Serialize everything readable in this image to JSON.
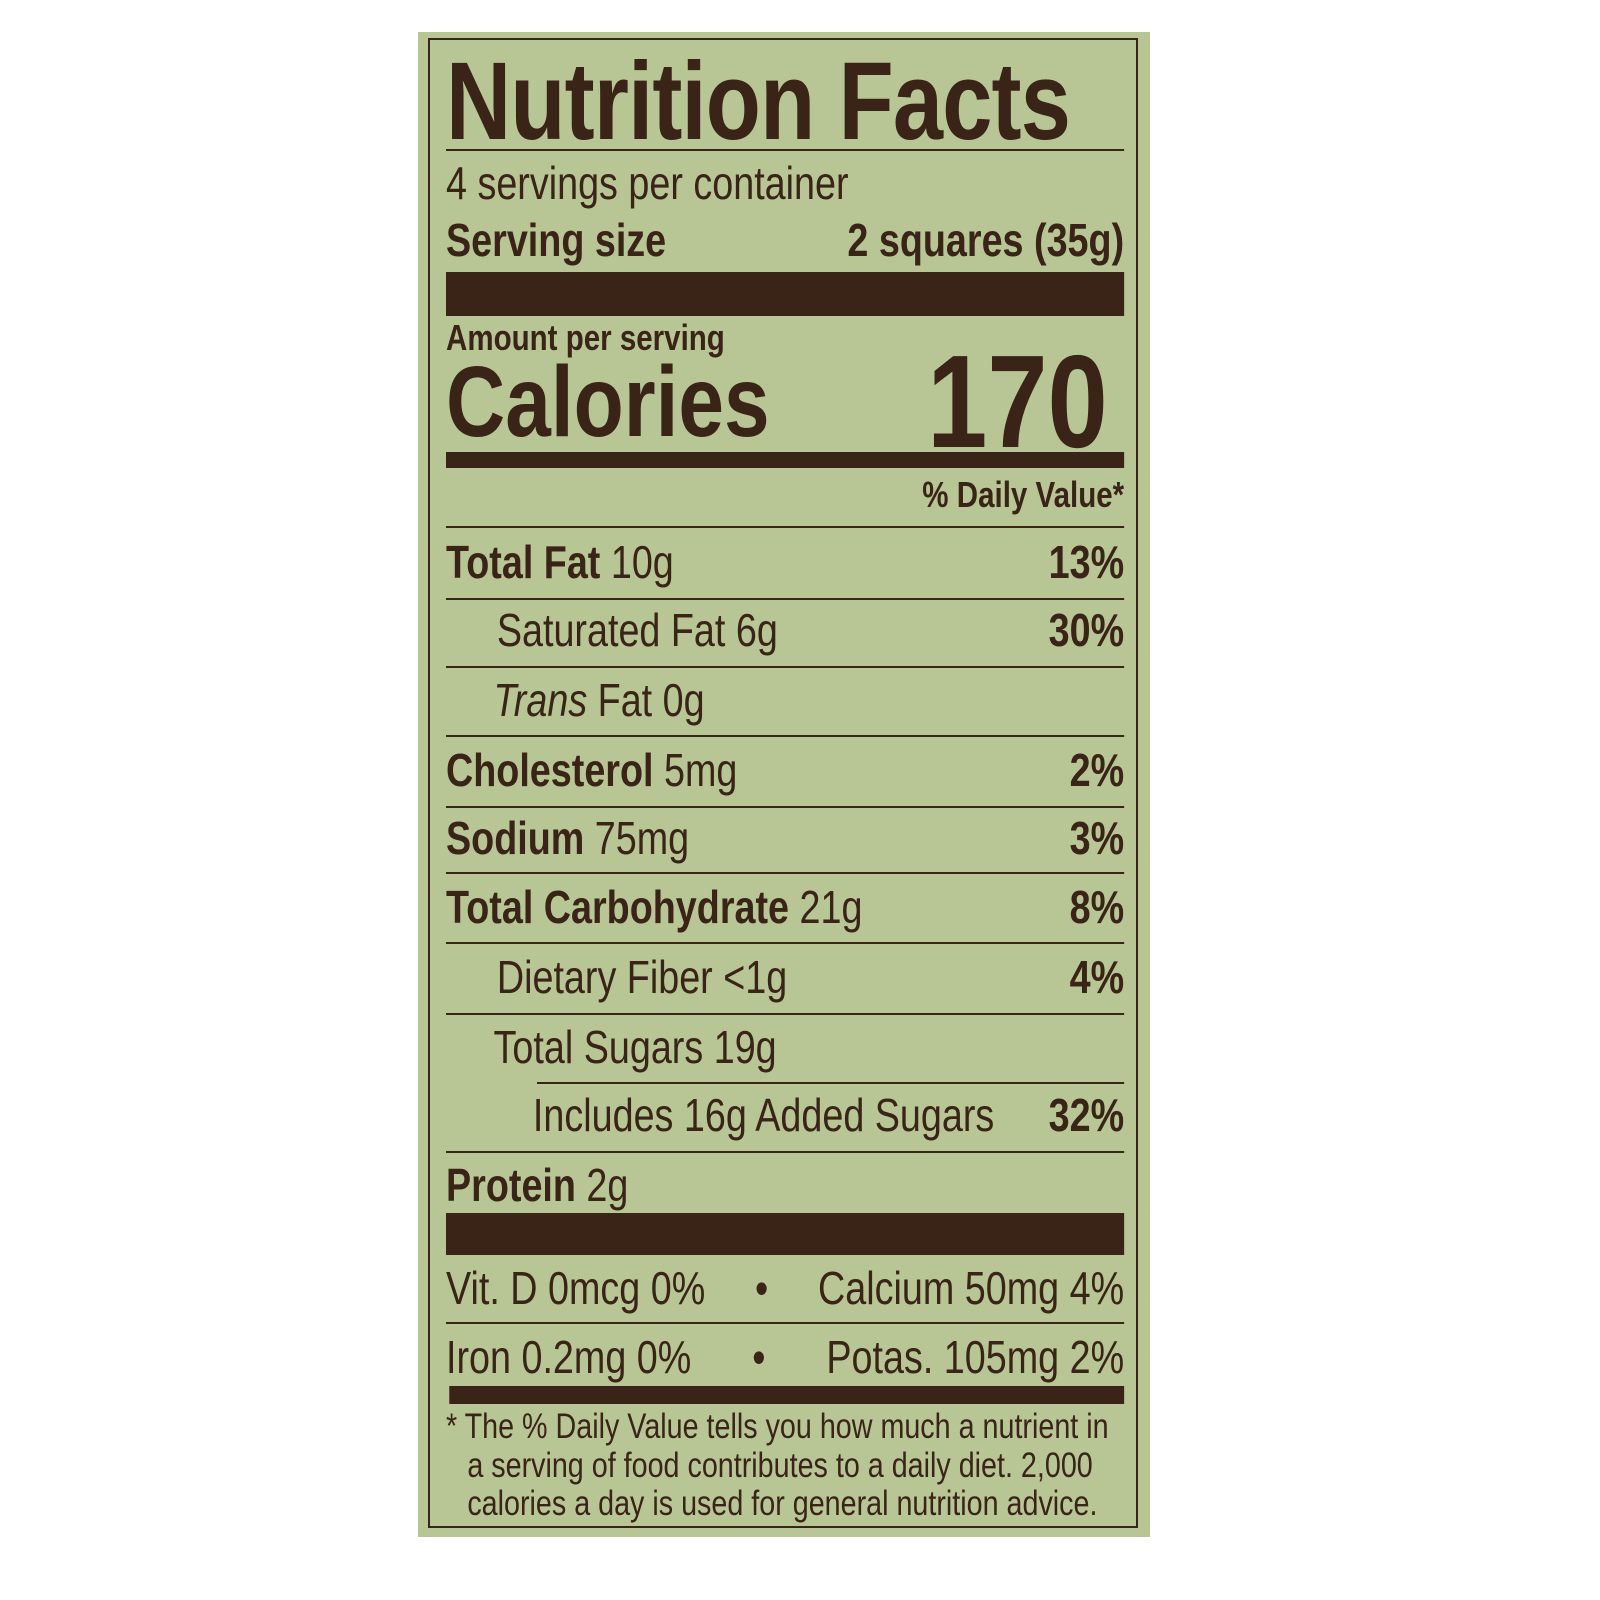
{
  "colors": {
    "background": "#b8c695",
    "ink": "#3a2418"
  },
  "title": "Nutrition Facts",
  "servings_per_container": "4 servings per container",
  "serving_size": {
    "label": "Serving size",
    "value": "2 squares (35g)"
  },
  "amount_per_serving": "Amount per serving",
  "calories": {
    "label": "Calories",
    "value": "170"
  },
  "daily_value_header": "% Daily Value*",
  "nutrients": [
    {
      "name": "Total Fat",
      "amount": "10g",
      "dv": "13%"
    },
    {
      "name": "Saturated Fat",
      "amount": "6g",
      "dv": "30%"
    },
    {
      "name": "Trans",
      "name_rest": "Fat",
      "amount": "0g",
      "dv": ""
    },
    {
      "name": "Cholesterol",
      "amount": "5mg",
      "dv": "2%"
    },
    {
      "name": "Sodium",
      "amount": "75mg",
      "dv": "3%"
    },
    {
      "name": "Total Carbohydrate",
      "amount": "21g",
      "dv": "8%"
    },
    {
      "name": "Dietary Fiber",
      "amount": "<1g",
      "dv": "4%"
    },
    {
      "name": "Total Sugars",
      "amount": "19g",
      "dv": ""
    },
    {
      "name": "Includes 16g Added Sugars",
      "amount": "",
      "dv": "32%"
    },
    {
      "name": "Protein",
      "amount": "2g",
      "dv": ""
    }
  ],
  "micros": [
    {
      "left": "Vit. D 0mcg 0%",
      "right": "Calcium 50mg 4%"
    },
    {
      "left": "Iron 0.2mg 0%",
      "right": "Potas. 105mg 2%"
    }
  ],
  "bullet": "•",
  "footnote": [
    "* The % Daily Value tells you how much a nutrient in",
    "a serving of food contributes to a daily diet. 2,000",
    "calories a day is used for general nutrition advice."
  ]
}
